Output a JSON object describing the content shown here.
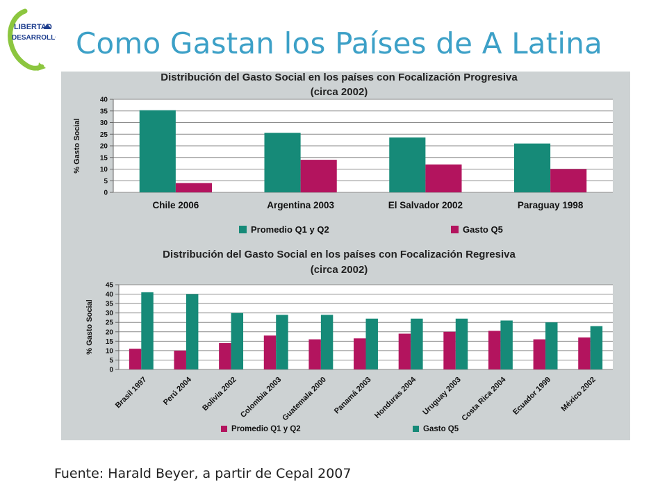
{
  "slide": {
    "title": "Como Gastan los Países de A Latina",
    "source": "Fuente: Harald Beyer, a partir de Cepal 2007",
    "logo_line1": "LIBERTAD",
    "logo_line2": "DESARROLLO"
  },
  "colors": {
    "teal": "#168a78",
    "magenta": "#b3145e",
    "title": "#3ca0c7",
    "panel": "#cdd2d3"
  },
  "chart_data": [
    {
      "type": "bar",
      "title_line1": "Distribución del Gasto Social en los países con Focalización Progresiva",
      "title_line2": "(circa 2002)",
      "ylabel": "% Gasto Social",
      "ylim": [
        0,
        40
      ],
      "yticks": [
        0,
        5,
        10,
        15,
        20,
        25,
        30,
        35,
        40
      ],
      "grid": true,
      "legend_position": "bottom",
      "categories": [
        "Chile 2006",
        "Argentina 2003",
        "El Salvador 2002",
        "Paraguay 1998"
      ],
      "series": [
        {
          "name": "Promedio Q1 y Q2",
          "color": "#168a78",
          "values": [
            35.3,
            25.6,
            23.6,
            21
          ]
        },
        {
          "name": "Gasto Q5",
          "color": "#b3145e",
          "values": [
            4,
            14,
            12,
            10
          ]
        }
      ]
    },
    {
      "type": "bar",
      "title_line1": "Distribución del Gasto Social en los países con Focalización Regresiva",
      "title_line2": "(circa 2002)",
      "ylabel": "% Gasto Social",
      "ylim": [
        0,
        45
      ],
      "yticks": [
        0,
        5,
        10,
        15,
        20,
        25,
        30,
        35,
        40,
        45
      ],
      "grid": true,
      "legend_position": "bottom",
      "categories": [
        "Brasil 1997",
        "Perú 2004",
        "Bolivia 2002",
        "Colombia 2003",
        "Guatemala 2000",
        "Panamá 2003",
        "Honduras 2004",
        "Uruguay 2003",
        "Costa Rica 2004",
        "Ecuador 1999",
        "México 2002"
      ],
      "series": [
        {
          "name": "Promedio Q1 y Q2",
          "color": "#b3145e",
          "values": [
            11,
            10,
            14,
            18,
            16,
            16.5,
            19,
            20,
            20.5,
            16,
            17
          ]
        },
        {
          "name": "Gasto Q5",
          "color": "#168a78",
          "values": [
            41,
            40,
            30,
            29,
            29,
            27,
            27,
            27,
            26,
            25,
            23
          ]
        }
      ]
    }
  ]
}
